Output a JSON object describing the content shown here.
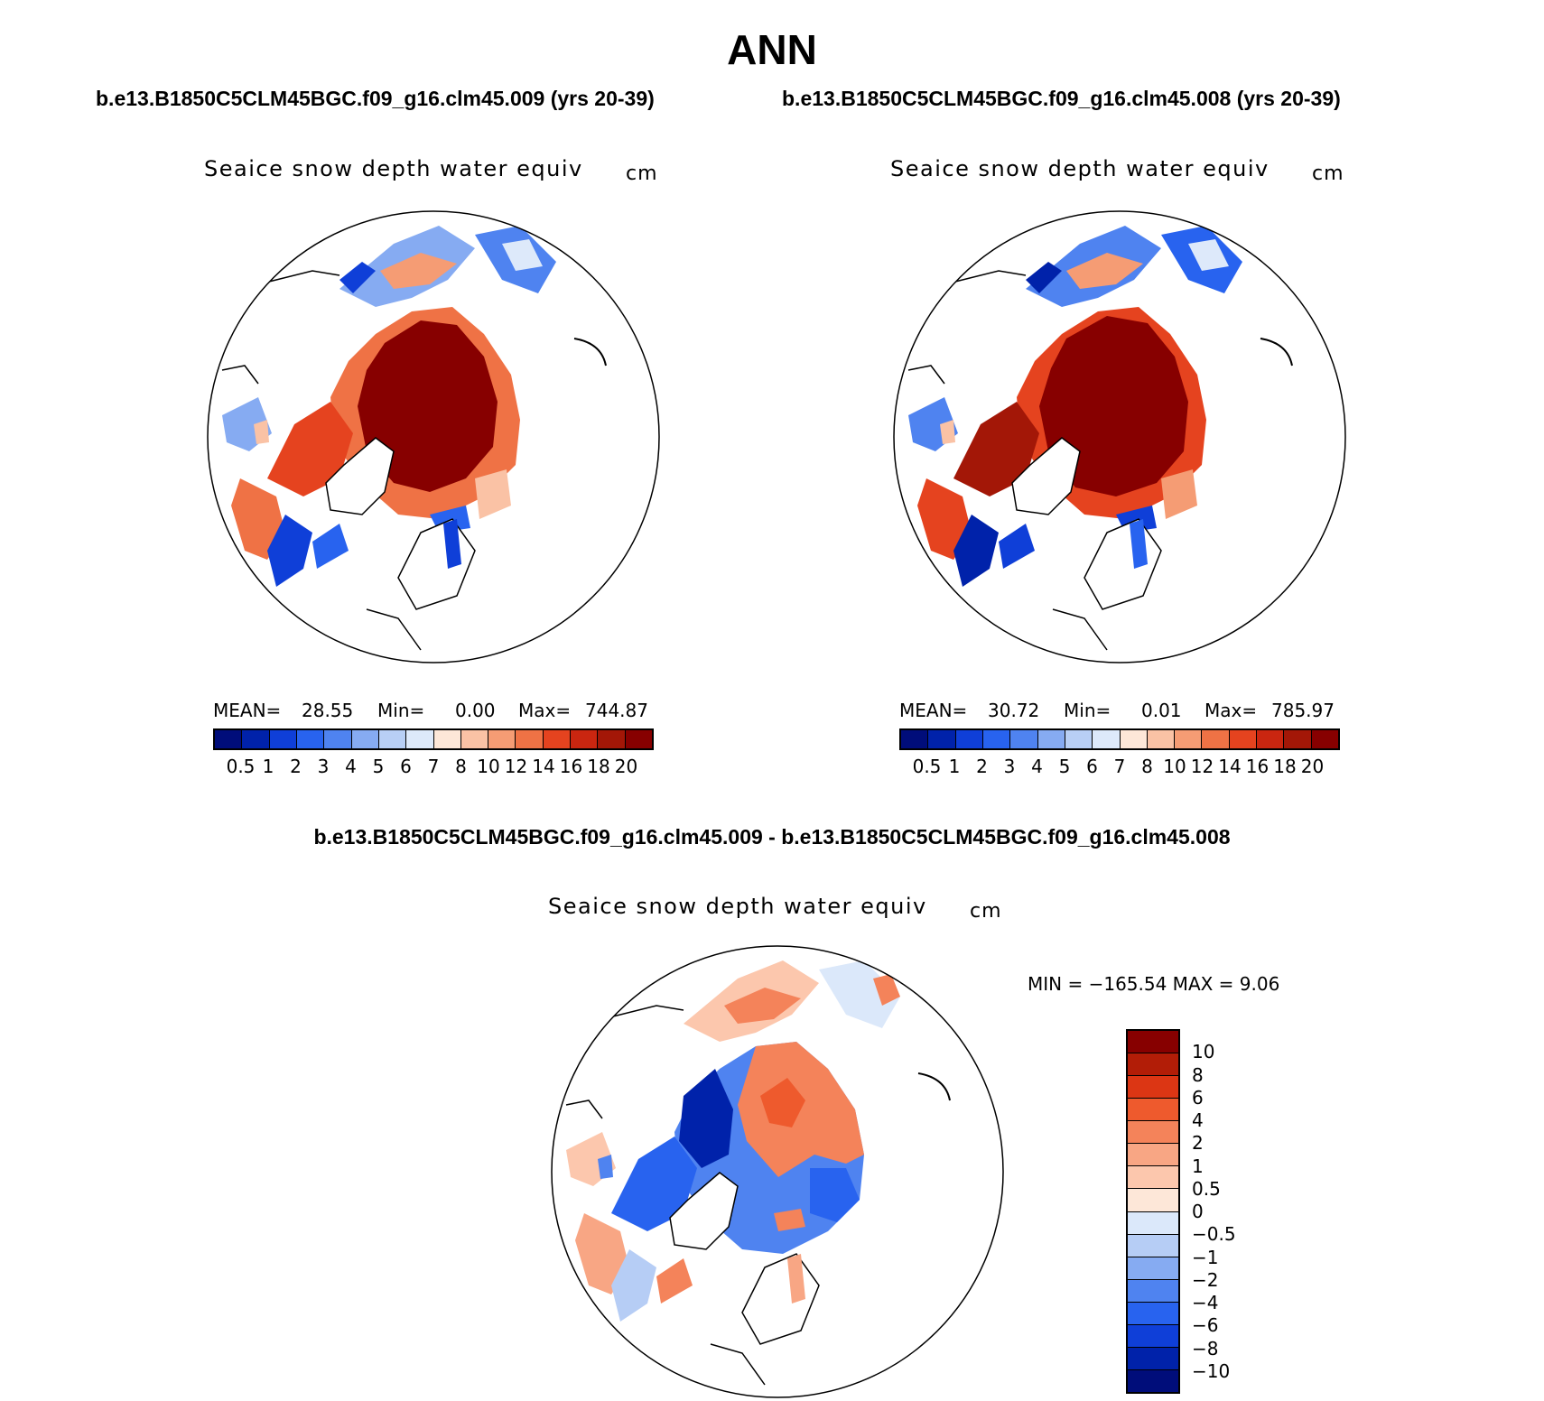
{
  "figure": {
    "title": "ANN",
    "case1_header": "b.e13.B1850C5CLM45BGC.f09_g16.clm45.009 (yrs 20-39)",
    "case2_header": "b.e13.B1850C5CLM45BGC.f09_g16.clm45.008 (yrs 20-39)",
    "diff_header": "b.e13.B1850C5CLM45BGC.f09_g16.clm45.009 - b.e13.B1850C5CLM45BGC.f09_g16.clm45.008"
  },
  "panels": [
    {
      "title": "Seaice snow depth water equiv",
      "units": "cm",
      "mean_label": "MEAN=",
      "mean_value": "28.55",
      "min_label": "Min=",
      "min_value": "0.00",
      "max_label": "Max=",
      "max_value": "744.87"
    },
    {
      "title": "Seaice snow depth water equiv",
      "units": "cm",
      "mean_label": "MEAN=",
      "mean_value": "30.72",
      "min_label": "Min=",
      "min_value": "0.01",
      "max_label": "Max=",
      "max_value": "785.97"
    },
    {
      "title": "Seaice snow depth water equiv",
      "units": "cm",
      "minmax_text": "MIN = −165.54  MAX =     9.06"
    }
  ],
  "colorbar_abs": {
    "ticks": [
      "0.5",
      "1",
      "2",
      "3",
      "4",
      "5",
      "6",
      "7",
      "8",
      "10",
      "12",
      "14",
      "16",
      "18",
      "20"
    ],
    "colors": [
      "#000d7a",
      "#0022aa",
      "#0f3fd8",
      "#2863ef",
      "#4f83f0",
      "#86abf2",
      "#b8cff5",
      "#dde9fa",
      "#fde7d8",
      "#fac2a5",
      "#f59c74",
      "#ef7245",
      "#e5431f",
      "#ca2610",
      "#a31707",
      "#870000"
    ]
  },
  "colorbar_diff": {
    "ticks": [
      "10",
      "8",
      "6",
      "4",
      "2",
      "1",
      "0.5",
      "0",
      "−0.5",
      "−1",
      "−2",
      "−4",
      "−6",
      "−8",
      "−10"
    ],
    "colors": [
      "#870000",
      "#b21d07",
      "#dc3614",
      "#ee5a2d",
      "#f4835a",
      "#f8a684",
      "#fcc7ad",
      "#fde7d8",
      "#dbe8fa",
      "#b6cdf5",
      "#86abf2",
      "#4f83f0",
      "#2863ef",
      "#0f3fd8",
      "#0022aa",
      "#000d7a"
    ]
  }
}
